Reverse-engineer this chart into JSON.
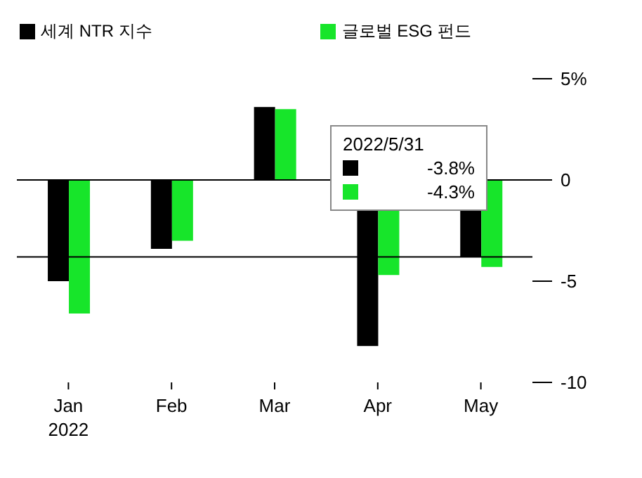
{
  "chart_data": {
    "type": "bar",
    "categories": [
      "Jan\n2022",
      "Feb",
      "Mar",
      "Apr",
      "May"
    ],
    "series": [
      {
        "name": "세계 NTR 지수",
        "color": "#000000",
        "values": [
          -5.0,
          -3.4,
          3.6,
          -8.2,
          -3.8
        ]
      },
      {
        "name": "글로벌 ESG 펀드",
        "color": "#17e52a",
        "values": [
          -6.6,
          -3.0,
          3.5,
          -4.7,
          -4.3
        ]
      }
    ],
    "ylim": [
      -10,
      5
    ],
    "yticks": [
      {
        "value": 5,
        "label": "5%"
      },
      0,
      -5,
      -10
    ],
    "ref_lines": [
      {
        "axis": "y",
        "value": 0
      },
      {
        "axis": "y",
        "value": -3.8
      }
    ],
    "annotations": [
      "2022/5/31",
      "-3.8%",
      "-4.3%"
    ],
    "legend": "top",
    "grid": false
  }
}
